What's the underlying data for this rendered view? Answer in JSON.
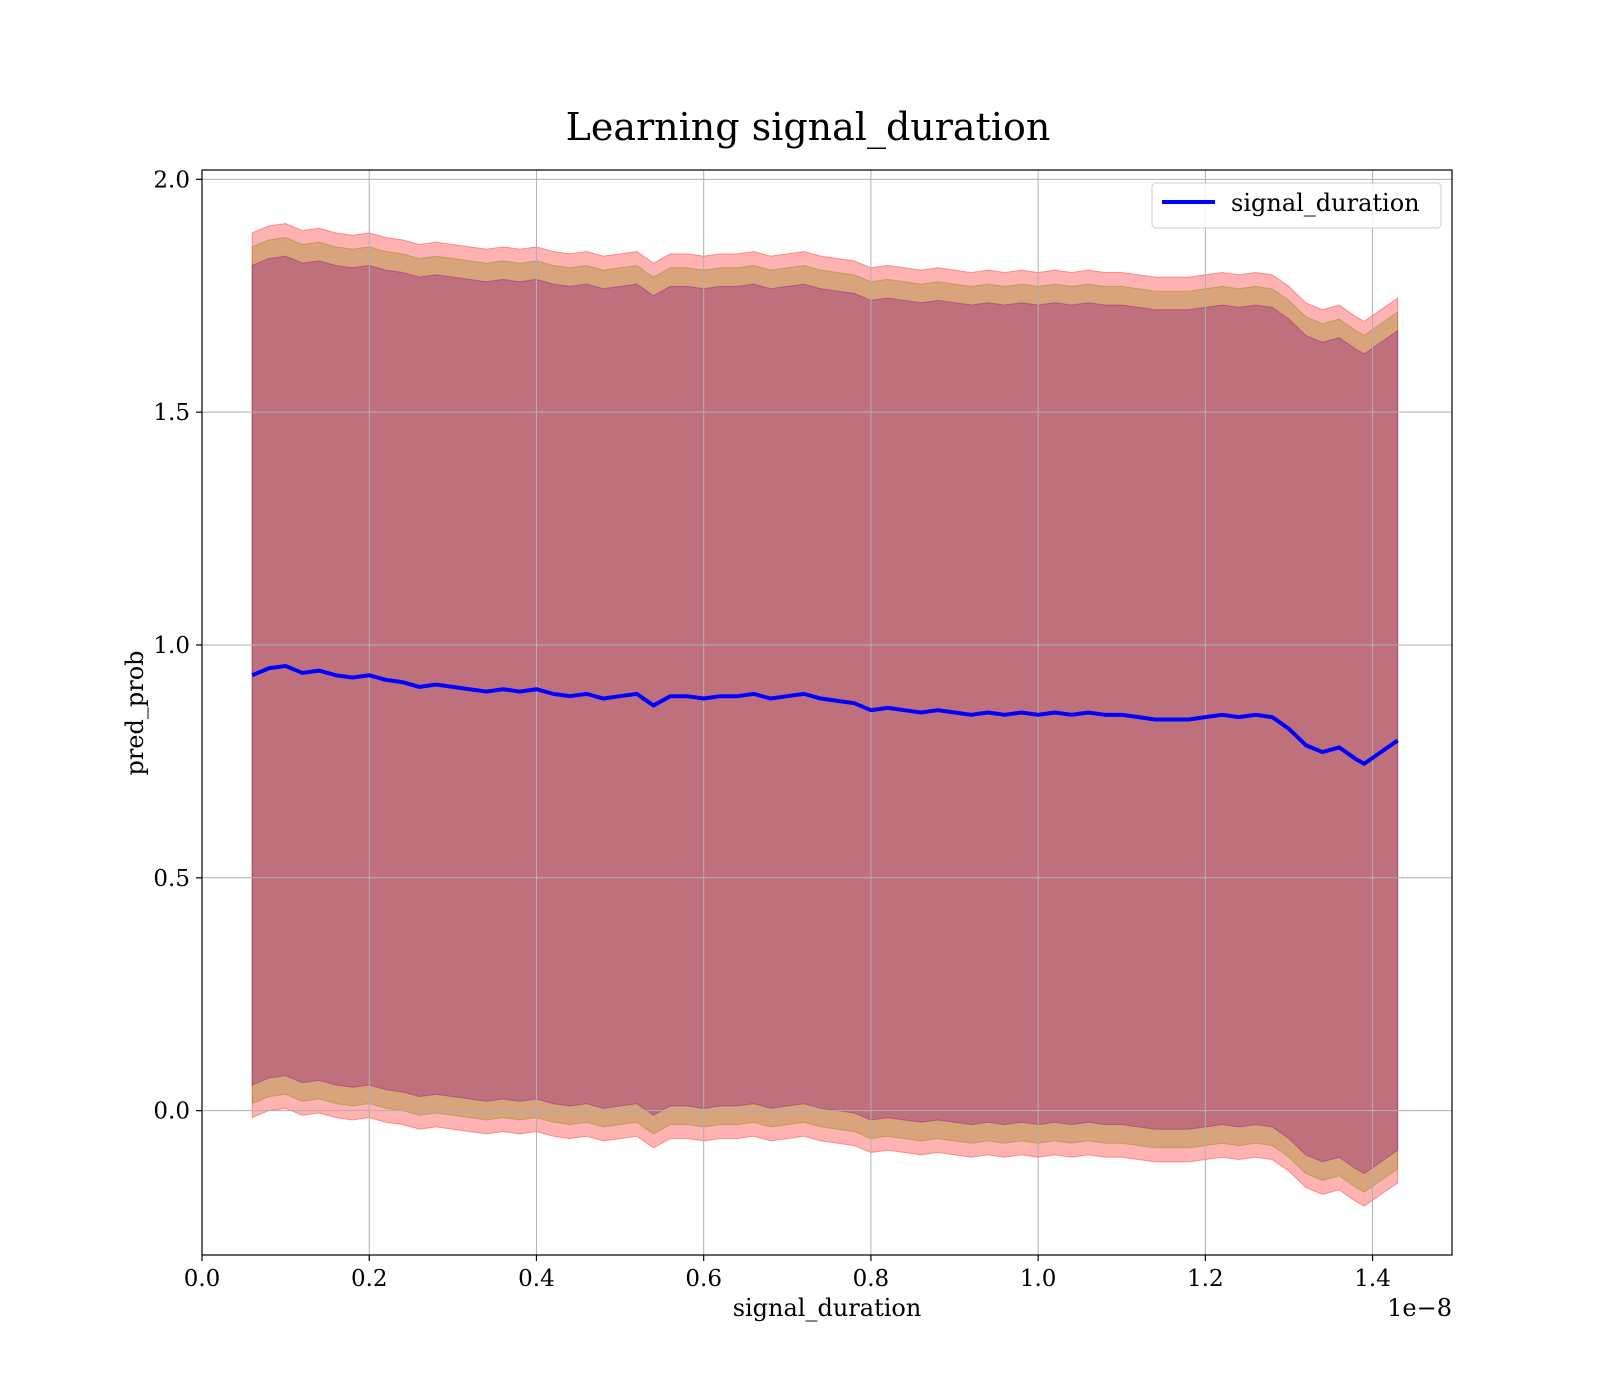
{
  "chart_data": {
    "type": "line",
    "title": "Learning signal_duration",
    "xlabel": "signal_duration",
    "ylabel": "pred_prob",
    "x_offset_label": "1e−8",
    "xlim": [
      -1e-05,
      1.495
    ],
    "ylim": [
      -0.31,
      2.02
    ],
    "x_ticks": [
      0.0,
      0.2,
      0.4,
      0.6,
      0.8,
      1.0,
      1.2,
      1.4
    ],
    "x_tick_labels": [
      "0.0",
      "0.2",
      "0.4",
      "0.6",
      "0.8",
      "1.0",
      "1.2",
      "1.4"
    ],
    "y_ticks": [
      0.0,
      0.5,
      1.0,
      1.5,
      2.0
    ],
    "y_tick_labels": [
      "0.0",
      "0.5",
      "1.0",
      "1.5",
      "2.0"
    ],
    "grid": true,
    "legend_position": "top-right",
    "colors": {
      "line": "#0000ff",
      "band_outer": "#ff0000",
      "band_middle": "#808000",
      "band_inner": "#800080"
    },
    "series": [
      {
        "name": "signal_duration",
        "x": [
          0.06,
          0.08,
          0.1,
          0.12,
          0.14,
          0.16,
          0.18,
          0.2,
          0.22,
          0.24,
          0.26,
          0.28,
          0.3,
          0.32,
          0.34,
          0.36,
          0.38,
          0.4,
          0.42,
          0.44,
          0.46,
          0.48,
          0.5,
          0.52,
          0.54,
          0.56,
          0.58,
          0.6,
          0.62,
          0.64,
          0.66,
          0.68,
          0.7,
          0.72,
          0.74,
          0.76,
          0.78,
          0.8,
          0.82,
          0.84,
          0.86,
          0.88,
          0.9,
          0.92,
          0.94,
          0.96,
          0.98,
          1.0,
          1.02,
          1.04,
          1.06,
          1.08,
          1.1,
          1.12,
          1.14,
          1.16,
          1.18,
          1.2,
          1.22,
          1.24,
          1.26,
          1.28,
          1.3,
          1.32,
          1.34,
          1.36,
          1.38,
          1.39,
          1.43
        ],
        "y": [
          0.935,
          0.95,
          0.955,
          0.94,
          0.945,
          0.935,
          0.93,
          0.935,
          0.925,
          0.92,
          0.91,
          0.915,
          0.91,
          0.905,
          0.9,
          0.905,
          0.9,
          0.905,
          0.895,
          0.89,
          0.895,
          0.885,
          0.89,
          0.895,
          0.87,
          0.89,
          0.89,
          0.885,
          0.89,
          0.89,
          0.895,
          0.885,
          0.89,
          0.895,
          0.885,
          0.88,
          0.875,
          0.86,
          0.865,
          0.86,
          0.855,
          0.86,
          0.855,
          0.85,
          0.855,
          0.85,
          0.855,
          0.85,
          0.855,
          0.85,
          0.855,
          0.85,
          0.85,
          0.845,
          0.84,
          0.84,
          0.84,
          0.845,
          0.85,
          0.845,
          0.85,
          0.845,
          0.82,
          0.785,
          0.77,
          0.78,
          0.755,
          0.745,
          0.795
        ],
        "band_half_width_outer": [
          0.95,
          0.95,
          0.95,
          0.95,
          0.95,
          0.95,
          0.95,
          0.95,
          0.95,
          0.95,
          0.95,
          0.95,
          0.95,
          0.95,
          0.95,
          0.95,
          0.95,
          0.95,
          0.95,
          0.95,
          0.95,
          0.95,
          0.95,
          0.95,
          0.95,
          0.95,
          0.95,
          0.95,
          0.95,
          0.95,
          0.95,
          0.95,
          0.95,
          0.95,
          0.95,
          0.95,
          0.95,
          0.95,
          0.95,
          0.95,
          0.95,
          0.95,
          0.95,
          0.95,
          0.95,
          0.95,
          0.95,
          0.95,
          0.95,
          0.95,
          0.95,
          0.95,
          0.95,
          0.95,
          0.95,
          0.95,
          0.95,
          0.95,
          0.95,
          0.95,
          0.95,
          0.95,
          0.95,
          0.95,
          0.95,
          0.95,
          0.95,
          0.95,
          0.95
        ],
        "band_half_width_middle": [
          0.92,
          0.92,
          0.92,
          0.92,
          0.92,
          0.92,
          0.92,
          0.92,
          0.92,
          0.92,
          0.92,
          0.92,
          0.92,
          0.92,
          0.92,
          0.92,
          0.92,
          0.92,
          0.92,
          0.92,
          0.92,
          0.92,
          0.92,
          0.92,
          0.92,
          0.92,
          0.92,
          0.92,
          0.92,
          0.92,
          0.92,
          0.92,
          0.92,
          0.92,
          0.92,
          0.92,
          0.92,
          0.92,
          0.92,
          0.92,
          0.92,
          0.92,
          0.92,
          0.92,
          0.92,
          0.92,
          0.92,
          0.92,
          0.92,
          0.92,
          0.92,
          0.92,
          0.92,
          0.92,
          0.92,
          0.92,
          0.92,
          0.92,
          0.92,
          0.92,
          0.92,
          0.92,
          0.92,
          0.92,
          0.92,
          0.92,
          0.92,
          0.92,
          0.92
        ],
        "band_half_width_inner": [
          0.88,
          0.88,
          0.88,
          0.88,
          0.88,
          0.88,
          0.88,
          0.88,
          0.88,
          0.88,
          0.88,
          0.88,
          0.88,
          0.88,
          0.88,
          0.88,
          0.88,
          0.88,
          0.88,
          0.88,
          0.88,
          0.88,
          0.88,
          0.88,
          0.88,
          0.88,
          0.88,
          0.88,
          0.88,
          0.88,
          0.88,
          0.88,
          0.88,
          0.88,
          0.88,
          0.88,
          0.88,
          0.88,
          0.88,
          0.88,
          0.88,
          0.88,
          0.88,
          0.88,
          0.88,
          0.88,
          0.88,
          0.88,
          0.88,
          0.88,
          0.88,
          0.88,
          0.88,
          0.88,
          0.88,
          0.88,
          0.88,
          0.88,
          0.88,
          0.88,
          0.88,
          0.88,
          0.88,
          0.88,
          0.88,
          0.88,
          0.88,
          0.88,
          0.88
        ]
      }
    ]
  }
}
